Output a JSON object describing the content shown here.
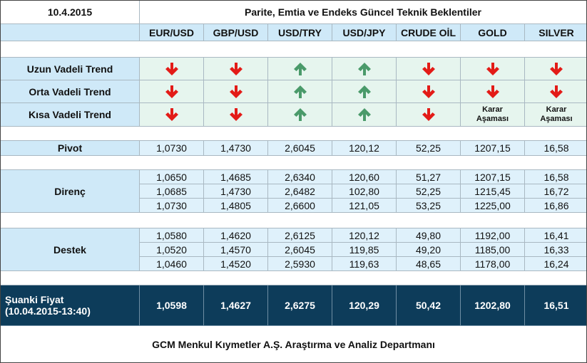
{
  "header": {
    "date": "10.4.2015",
    "title": "Parite, Emtia ve Endeks Güncel Teknik Beklentiler"
  },
  "columns": [
    "EUR/USD",
    "GBP/USD",
    "USD/TRY",
    "USD/JPY",
    "CRUDE OİL",
    "GOLD",
    "SILVER"
  ],
  "trend_rows": [
    {
      "label": "Uzun Vadeli Trend"
    },
    {
      "label": "Orta Vadeli Trend"
    },
    {
      "label": "Kısa Vadeli Trend",
      "notes": [
        "Karar Aşaması",
        "Karar Aşaması"
      ]
    }
  ],
  "pivot": {
    "label": "Pivot",
    "values": [
      "1,0730",
      "1,4730",
      "2,6045",
      "120,12",
      "52,25",
      "1207,15",
      "16,58"
    ]
  },
  "resistance": {
    "label": "Direnç",
    "rows": [
      [
        "1,0650",
        "1,4685",
        "2,6340",
        "120,60",
        "51,27",
        "1207,15",
        "16,58"
      ],
      [
        "1,0685",
        "1,4730",
        "2,6482",
        "102,80",
        "52,25",
        "1215,45",
        "16,72"
      ],
      [
        "1,0730",
        "1,4805",
        "2,6600",
        "121,05",
        "53,25",
        "1225,00",
        "16,86"
      ]
    ]
  },
  "support": {
    "label": "Destek",
    "rows": [
      [
        "1,0580",
        "1,4620",
        "2,6125",
        "120,12",
        "49,80",
        "1192,00",
        "16,41"
      ],
      [
        "1,0520",
        "1,4570",
        "2,6045",
        "119,85",
        "49,20",
        "1185,00",
        "16,33"
      ],
      [
        "1,0460",
        "1,4520",
        "2,5930",
        "119,63",
        "48,65",
        "1178,00",
        "16,24"
      ]
    ]
  },
  "current": {
    "label": "Şuanki Fiyat",
    "time": "(10.04.2015-13:40)",
    "values": [
      "1,0598",
      "1,4627",
      "2,6275",
      "120,29",
      "50,42",
      "1202,80",
      "16,51"
    ]
  },
  "footer": "GCM Menkul Kıymetler A.Ş. Araştırma ve Analiz Departmanı"
}
